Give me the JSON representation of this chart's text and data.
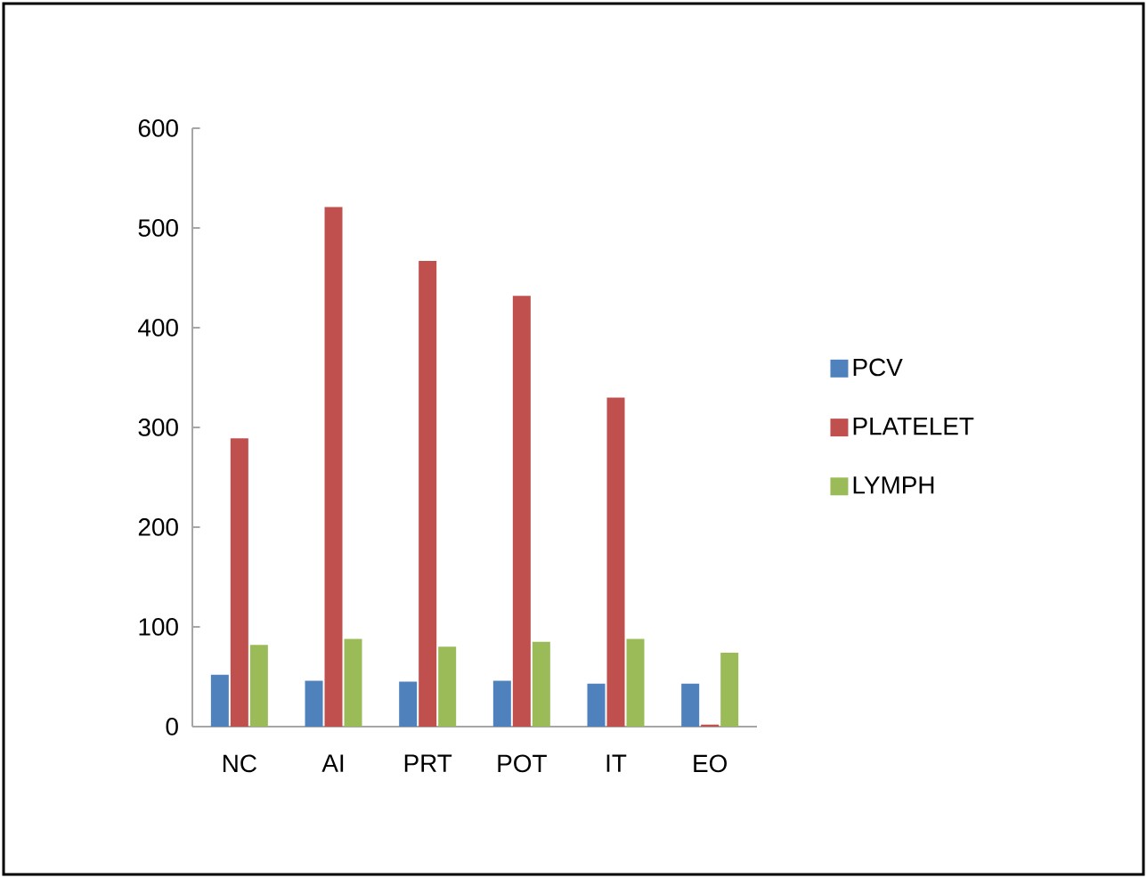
{
  "chart_data": {
    "type": "bar",
    "categories": [
      "NC",
      "AI",
      "PRT",
      "POT",
      "IT",
      "EO"
    ],
    "series": [
      {
        "name": "PCV",
        "color": "#4f81bd",
        "values": [
          52,
          46,
          45,
          46,
          43,
          43
        ]
      },
      {
        "name": "PLATELET",
        "color": "#c0504d",
        "values": [
          289,
          521,
          467,
          432,
          330,
          2
        ]
      },
      {
        "name": "LYMPH",
        "color": "#9bbb59",
        "values": [
          82,
          88,
          80,
          85,
          88,
          74
        ]
      }
    ],
    "ylim": [
      0,
      600
    ],
    "yticks": [
      0,
      100,
      200,
      300,
      400,
      500,
      600
    ],
    "grid": false,
    "legend": "right"
  }
}
